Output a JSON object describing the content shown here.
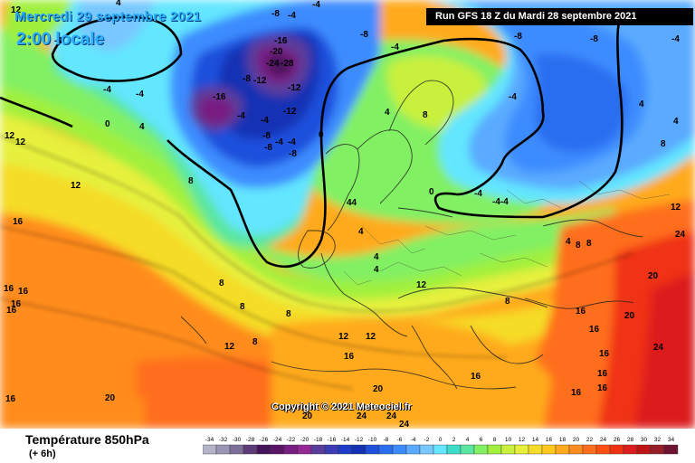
{
  "header": {
    "date_text": "Mercredi 29 septembre 2021",
    "time_text": "2:00 locale",
    "run_text": "Run GFS 18 Z du Mardi 28 septembre 2021"
  },
  "footer": {
    "variable_title": "Température 850hPa",
    "variable_sub": "(+ 6h)",
    "copyright": "Copyright © 2021 Meteociel.fr"
  },
  "legend": {
    "labels": [
      "-34",
      "-32",
      "-30",
      "-28",
      "-26",
      "-24",
      "-22",
      "-20",
      "-18",
      "-16",
      "-14",
      "-12",
      "-10",
      "-8",
      "-6",
      "-4",
      "-2",
      "0",
      "2",
      "4",
      "6",
      "8",
      "10",
      "12",
      "14",
      "16",
      "18",
      "20",
      "22",
      "24",
      "26",
      "28",
      "30",
      "32",
      "34"
    ],
    "colors": [
      "#b4b4c8",
      "#9a96b4",
      "#7e6e9a",
      "#5e3c78",
      "#46145a",
      "#5a1468",
      "#781e82",
      "#962896",
      "#5a3c9c",
      "#3c3cb4",
      "#1e3cc8",
      "#1432b4",
      "#1e50dc",
      "#2a6ef0",
      "#3c8cff",
      "#5aaaff",
      "#78c8ff",
      "#64e6ff",
      "#3cdcc8",
      "#5ae6a0",
      "#82f064",
      "#a0f03c",
      "#c8f03c",
      "#e6f03c",
      "#f5dc28",
      "#ffc81e",
      "#ffaa1e",
      "#ff8c1e",
      "#ff6e1e",
      "#ff5014",
      "#f03214",
      "#dc1e1e",
      "#be1414",
      "#961e28",
      "#6e1432"
    ]
  },
  "map": {
    "contour_labels": [
      "-24",
      "-20",
      "-16",
      "-12",
      "-8",
      "-4",
      "0",
      "4",
      "8",
      "12",
      "16",
      "20",
      "24"
    ],
    "colors": {
      "deep_cold": "#46145a",
      "very_cold": "#1432b4",
      "cold": "#3c8cff",
      "cool": "#64e6ff",
      "mild": "#82f064",
      "warm": "#f5dc28",
      "hot": "#ff8c1e",
      "very_hot": "#f03214"
    }
  }
}
